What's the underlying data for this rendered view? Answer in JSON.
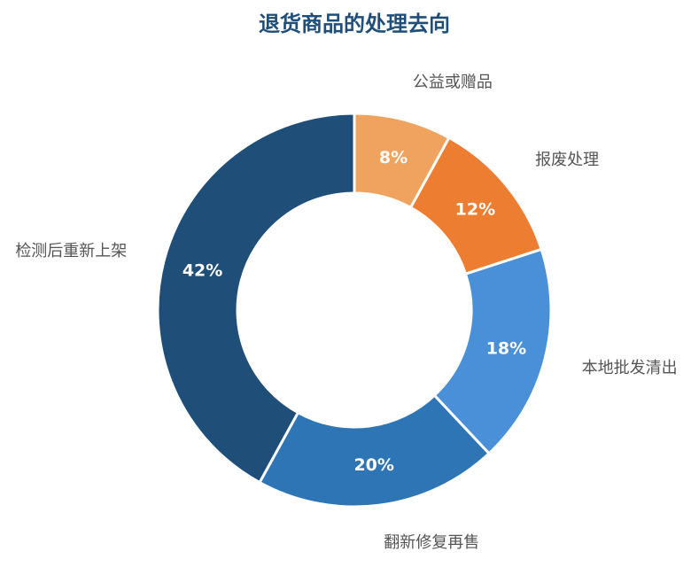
{
  "chart_data": {
    "type": "pie",
    "donut": true,
    "title": "退货商品的处理去向",
    "categories": [
      "公益或赠品",
      "报废处理",
      "本地批发清出",
      "翻新修复再售",
      "检测后重新上架"
    ],
    "values": [
      8,
      12,
      18,
      20,
      42
    ],
    "value_labels": [
      "8%",
      "12%",
      "18%",
      "20%",
      "42%"
    ],
    "colors": [
      "#f0a35e",
      "#ed7d31",
      "#4a90d9",
      "#2e75b6",
      "#1f4e79"
    ]
  }
}
